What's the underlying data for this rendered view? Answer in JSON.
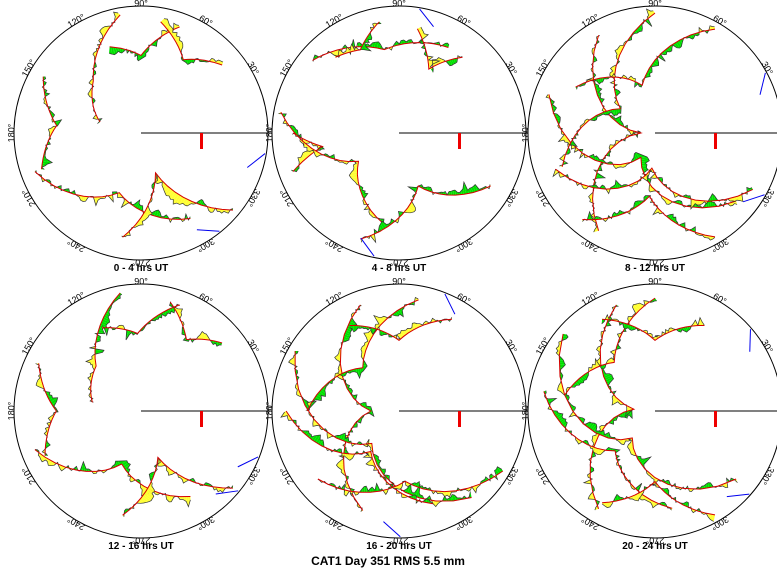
{
  "title": "CAT1 Day 351 RMS 5.5 mm",
  "angle_labels": [
    "0°",
    "30°",
    "60°",
    "90°",
    "120°",
    "150°",
    "180°",
    "210°",
    "240°",
    "270°",
    "300°",
    "330°"
  ],
  "panels": [
    {
      "caption": "0 - 4 hrs UT"
    },
    {
      "caption": "4 - 8 hrs UT"
    },
    {
      "caption": "8 - 12 hrs UT"
    },
    {
      "caption": "12 - 16 hrs UT"
    },
    {
      "caption": "16 - 20 hrs UT"
    },
    {
      "caption": "20 - 24 hrs UT"
    }
  ],
  "colors": {
    "circle": "#000000",
    "track": "#d40000",
    "positive_fill": "#00e000",
    "negative_fill": "#ffff33",
    "residual_line": "#333333",
    "blue_track": "#0000ee",
    "scale_bar": "#ee0000"
  }
}
